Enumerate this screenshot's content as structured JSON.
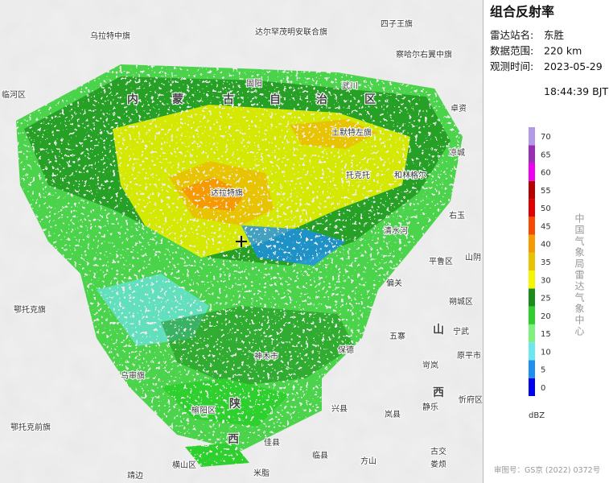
{
  "panel": {
    "title": "组合反射率",
    "fields": [
      {
        "label": "雷达站名:",
        "value": "东胜"
      },
      {
        "label": "数据范围:",
        "value": "220 km"
      },
      {
        "label": "观测时间:",
        "value": "2023-05-29"
      }
    ],
    "time_line2": "18:44:39 BJT"
  },
  "legend": {
    "unit": "dBZ",
    "levels": [
      {
        "value": 0,
        "color": "#0000f0"
      },
      {
        "value": 5,
        "color": "#1e8ff0"
      },
      {
        "value": 10,
        "color": "#6ee6f0"
      },
      {
        "value": 15,
        "color": "#7ef07e"
      },
      {
        "value": 20,
        "color": "#2ed02e"
      },
      {
        "value": 25,
        "color": "#1a8c1a"
      },
      {
        "value": 30,
        "color": "#f5f500"
      },
      {
        "value": 35,
        "color": "#e8c400"
      },
      {
        "value": 40,
        "color": "#f59a00"
      },
      {
        "value": 45,
        "color": "#f54a00"
      },
      {
        "value": 50,
        "color": "#e00000"
      },
      {
        "value": 55,
        "color": "#b40000"
      },
      {
        "value": 60,
        "color": "#f000f0"
      },
      {
        "value": 65,
        "color": "#9a2eb4"
      },
      {
        "value": 70,
        "color": "#b49ae6"
      }
    ]
  },
  "credit": "中国气象局雷达气象中心",
  "approval": "审图号：GS京 (2022) 0372号",
  "map": {
    "labels": [
      "乌拉特中旗",
      "达尔罕茂明安联合旗",
      "四子王旗",
      "察哈尔右翼中旗",
      "临河区",
      "固阳",
      "武川",
      "卓资",
      "土默特左旗",
      "凉城",
      "达拉特旗",
      "托克托",
      "和林格尔",
      "右玉",
      "清水河",
      "平鲁区",
      "山阴",
      "偏关",
      "朔城区",
      "鄂托克旗",
      "五寨",
      "神木市",
      "保德",
      "宁武",
      "原平市",
      "岢岚",
      "乌审旗",
      "兴县",
      "岚县",
      "静乐",
      "忻府区",
      "榆阳区",
      "鄂托克前旗",
      "佳县",
      "临县",
      "方山",
      "娄烦",
      "横山区",
      "米脂",
      "靖边",
      "古交"
    ],
    "regions": [
      "内",
      "蒙",
      "古",
      "自",
      "治",
      "区",
      "山",
      "西",
      "陕",
      "西"
    ]
  }
}
